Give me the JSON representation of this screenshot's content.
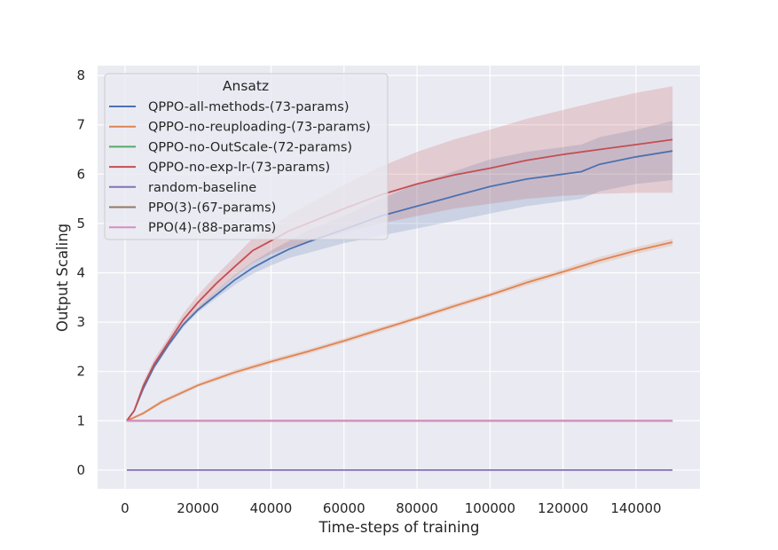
{
  "chart_data": {
    "type": "line",
    "title": "",
    "xlabel": "Time-steps of training",
    "ylabel": "Output Scaling",
    "xlim": [
      -7500,
      157500
    ],
    "ylim": [
      -0.38,
      8.2
    ],
    "xticks": [
      0,
      20000,
      40000,
      60000,
      80000,
      100000,
      120000,
      140000
    ],
    "xtick_labels": [
      "0",
      "20000",
      "40000",
      "60000",
      "80000",
      "100000",
      "120000",
      "140000"
    ],
    "yticks": [
      0,
      1,
      2,
      3,
      4,
      5,
      6,
      7,
      8
    ],
    "ytick_labels": [
      "0",
      "1",
      "2",
      "3",
      "4",
      "5",
      "6",
      "7",
      "8"
    ],
    "grid": true,
    "legend": {
      "title": "Ansatz",
      "location": "upper-left"
    },
    "series": [
      {
        "name": "QPPO-all-methods-(73-params)",
        "color": "#4c72b0",
        "x": [
          500,
          2500,
          5000,
          8000,
          12000,
          16000,
          20000,
          25000,
          30000,
          35000,
          40000,
          45000,
          50000,
          55000,
          60000,
          70000,
          80000,
          90000,
          100000,
          110000,
          120000,
          125000,
          130000,
          140000,
          150000
        ],
        "y": [
          1.0,
          1.2,
          1.65,
          2.1,
          2.55,
          2.95,
          3.25,
          3.55,
          3.85,
          4.1,
          4.3,
          4.48,
          4.62,
          4.75,
          4.88,
          5.15,
          5.35,
          5.55,
          5.75,
          5.9,
          6.0,
          6.05,
          6.2,
          6.35,
          6.47
        ],
        "lower": [
          1.0,
          1.18,
          1.6,
          2.05,
          2.5,
          2.9,
          3.2,
          3.48,
          3.75,
          3.98,
          4.15,
          4.3,
          4.4,
          4.5,
          4.6,
          4.75,
          4.9,
          5.05,
          5.2,
          5.35,
          5.45,
          5.5,
          5.65,
          5.8,
          5.88
        ],
        "upper": [
          1.0,
          1.22,
          1.7,
          2.15,
          2.6,
          3.0,
          3.3,
          3.62,
          3.95,
          4.22,
          4.45,
          4.65,
          4.85,
          5.0,
          5.15,
          5.5,
          5.8,
          6.05,
          6.3,
          6.45,
          6.55,
          6.6,
          6.75,
          6.9,
          7.08
        ]
      },
      {
        "name": "QPPO-no-reuploading-(73-params)",
        "color": "#dd8452",
        "x": [
          500,
          5000,
          10000,
          20000,
          30000,
          40000,
          50000,
          60000,
          70000,
          80000,
          90000,
          100000,
          110000,
          120000,
          130000,
          140000,
          150000
        ],
        "y": [
          1.0,
          1.15,
          1.38,
          1.72,
          1.98,
          2.2,
          2.4,
          2.62,
          2.85,
          3.08,
          3.32,
          3.55,
          3.8,
          4.02,
          4.25,
          4.45,
          4.62
        ],
        "lower": [
          0.98,
          1.12,
          1.34,
          1.68,
          1.93,
          2.15,
          2.35,
          2.57,
          2.8,
          3.03,
          3.27,
          3.5,
          3.74,
          3.96,
          4.18,
          4.38,
          4.55
        ],
        "upper": [
          1.02,
          1.18,
          1.42,
          1.76,
          2.03,
          2.25,
          2.45,
          2.67,
          2.9,
          3.13,
          3.37,
          3.6,
          3.86,
          4.08,
          4.32,
          4.52,
          4.69
        ]
      },
      {
        "name": "QPPO-no-OutScale-(72-params)",
        "color": "#55a868",
        "x": [
          500,
          150000
        ],
        "y": [
          1.0,
          1.0
        ]
      },
      {
        "name": "QPPO-no-exp-lr-(73-params)",
        "color": "#c44e52",
        "x": [
          500,
          2500,
          5000,
          8000,
          12000,
          16000,
          20000,
          25000,
          30000,
          35000,
          40000,
          45000,
          50000,
          55000,
          60000,
          70000,
          80000,
          90000,
          100000,
          110000,
          120000,
          130000,
          140000,
          150000
        ],
        "y": [
          1.0,
          1.2,
          1.7,
          2.15,
          2.6,
          3.05,
          3.4,
          3.78,
          4.12,
          4.45,
          4.65,
          4.85,
          5.0,
          5.15,
          5.3,
          5.58,
          5.8,
          5.98,
          6.12,
          6.28,
          6.4,
          6.5,
          6.6,
          6.7
        ],
        "lower": [
          1.0,
          1.18,
          1.62,
          2.05,
          2.5,
          2.92,
          3.25,
          3.6,
          3.92,
          4.2,
          4.38,
          4.52,
          4.62,
          4.72,
          4.82,
          5.0,
          5.15,
          5.3,
          5.4,
          5.5,
          5.56,
          5.6,
          5.62,
          5.62
        ],
        "upper": [
          1.0,
          1.22,
          1.78,
          2.25,
          2.7,
          3.18,
          3.55,
          3.95,
          4.32,
          4.7,
          4.92,
          5.18,
          5.38,
          5.58,
          5.78,
          6.15,
          6.45,
          6.7,
          6.9,
          7.12,
          7.3,
          7.48,
          7.65,
          7.78
        ]
      },
      {
        "name": "random-baseline",
        "color": "#8172b3",
        "x": [
          500,
          150000
        ],
        "y": [
          0.0,
          0.0
        ]
      },
      {
        "name": "PPO(3)-(67-params)",
        "color": "#937860",
        "x": [
          500,
          150000
        ],
        "y": [
          1.0,
          1.0
        ]
      },
      {
        "name": "PPO(4)-(88-params)",
        "color": "#da8bc3",
        "x": [
          500,
          150000
        ],
        "y": [
          1.0,
          1.0
        ]
      }
    ]
  }
}
